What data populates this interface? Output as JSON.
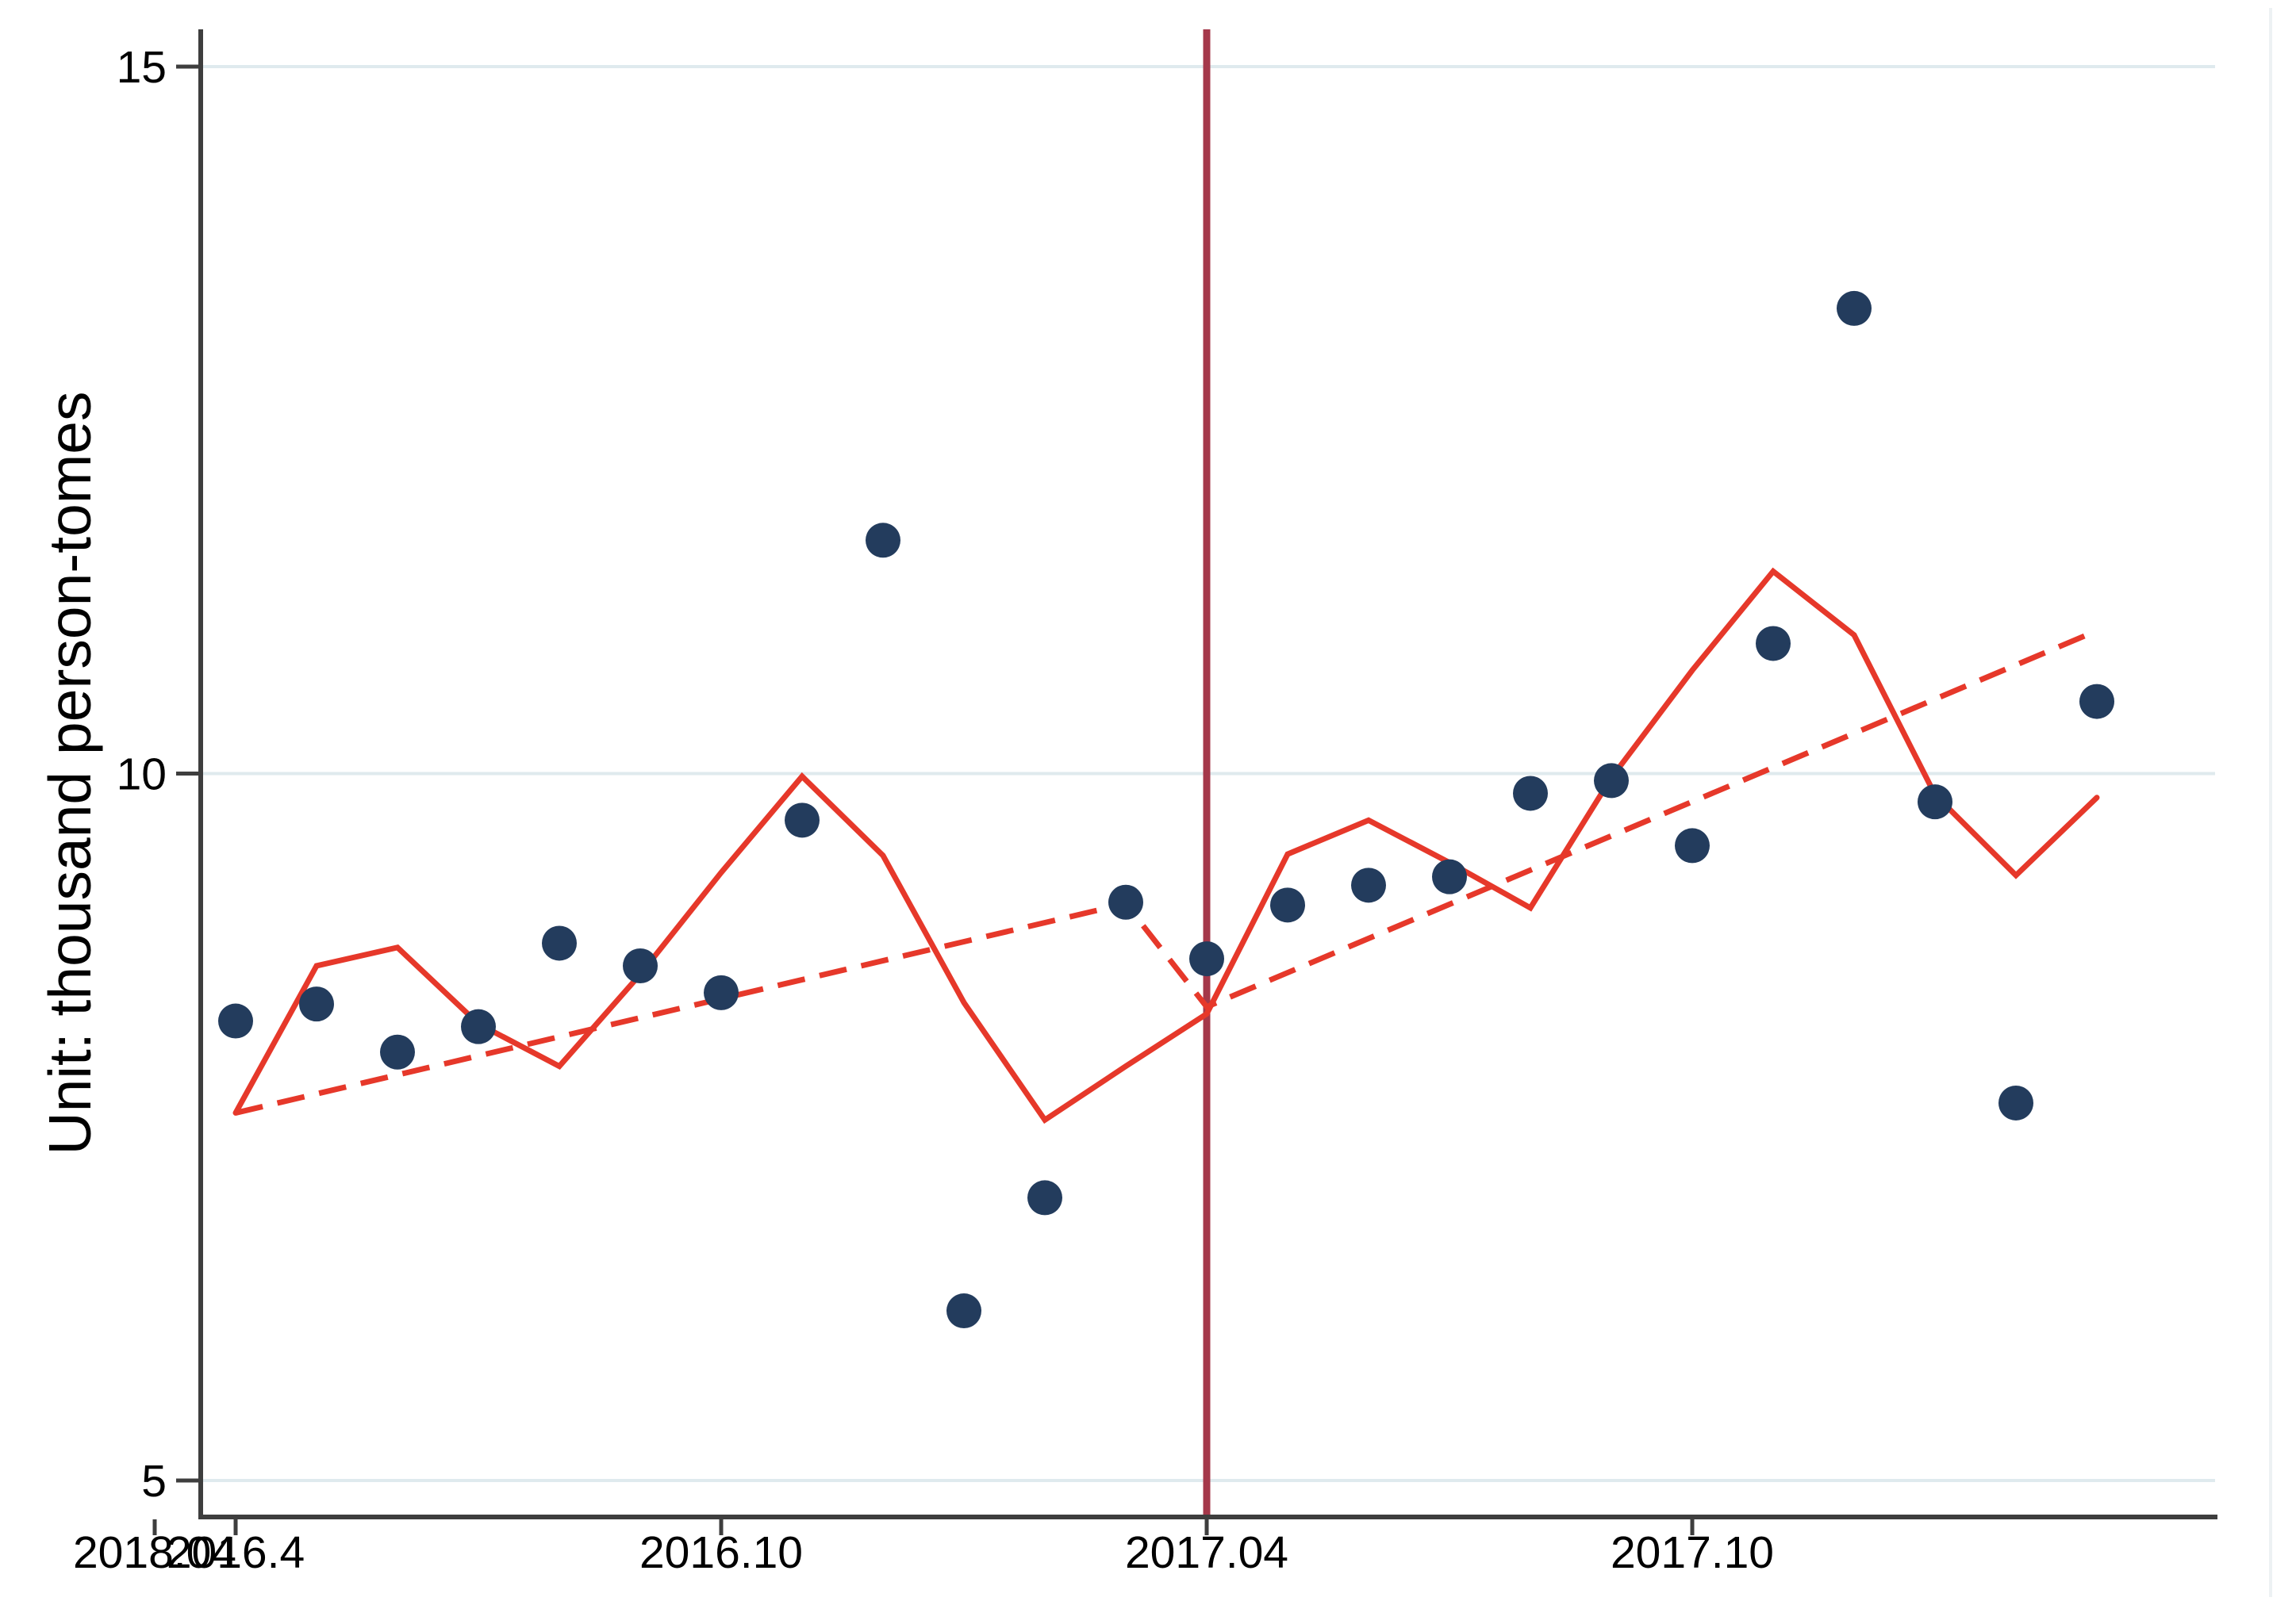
{
  "figure": {
    "title": "",
    "ylabel": "Unit: thousand person-tomes",
    "background": "#ffffff"
  },
  "axes": {
    "y_tick_labels": [
      "15",
      "10",
      "5"
    ],
    "y_tick_values": [
      15,
      10,
      5
    ],
    "x_tick_labels": [
      "2016.4",
      "2016.10",
      "2017.04",
      "2017.10",
      "2018.04"
    ],
    "x_tick_months": [
      "2016-04",
      "2016-10",
      "2017-04",
      "2017-10",
      "2018-04"
    ]
  },
  "colors": {
    "scatter_navy": "#233c5d",
    "line_red": "#e6382a",
    "cutoff_maroon": "#a5384a",
    "gridline": "#dfeaee",
    "axis": "#3e3e3e",
    "text": "#000000",
    "faint_right_border": "#edf1f3"
  },
  "chart_data": {
    "type": "scatter",
    "title": "",
    "xlabel": "",
    "ylabel": "Unit: thousand person-tomes",
    "grid": "horizontal gridlines at y = 5, 10, 15",
    "legend_position": "none",
    "xlim": [
      "2016-03-20",
      "2018-04-15"
    ],
    "ylim": [
      4.7,
      15.3
    ],
    "x_months": [
      "2016-04",
      "2016-05",
      "2016-06",
      "2016-07",
      "2016-08",
      "2016-09",
      "2016-10",
      "2016-11",
      "2016-12",
      "2017-01",
      "2017-02",
      "2017-03",
      "2017-04",
      "2017-05",
      "2017-06",
      "2017-07",
      "2017-08",
      "2017-09",
      "2017-10",
      "2017-11",
      "2017-12",
      "2018-01",
      "2018-02",
      "2018-03"
    ],
    "series": [
      {
        "name": "observed-monthly-values",
        "type": "scatter",
        "color": "#233c5d",
        "marker": "filled-circle",
        "values": [
          8.25,
          8.37,
          8.03,
          8.21,
          8.8,
          8.64,
          8.45,
          9.67,
          11.65,
          6.2,
          7.0,
          9.09,
          8.69,
          9.07,
          9.21,
          9.27,
          9.86,
          9.95,
          9.49,
          10.92,
          13.29,
          9.8,
          7.67,
          10.51
        ]
      },
      {
        "name": "fitted-line-solid",
        "type": "line",
        "color": "#e6382a",
        "stroke_width": 7,
        "values": [
          7.6,
          8.64,
          8.77,
          8.23,
          7.93,
          8.58,
          9.3,
          9.98,
          9.42,
          8.38,
          7.55,
          7.93,
          8.3,
          9.43,
          9.67,
          9.37,
          9.05,
          9.97,
          10.73,
          11.43,
          10.98,
          9.85,
          9.28,
          9.83
        ]
      },
      {
        "name": "linear-trend-dashed",
        "type": "line-dashed",
        "color": "#e6382a",
        "stroke_width": 7,
        "dash": [
          35,
          19
        ],
        "vertices_x": [
          "2016-04",
          "2017-03",
          "2017-04",
          "2018-03"
        ],
        "vertices_y": [
          7.6,
          9.08,
          8.35,
          11.01
        ],
        "note": "pre-cutoff trend 2016-04 to 2017-03, step down, post-cutoff trend 2017-04 to 2018-03"
      }
    ],
    "cutoff_line": {
      "name": "vertical-cutoff",
      "x": "2017-04",
      "color": "#a5384a",
      "stroke_width": 9,
      "span": "full plot height"
    }
  }
}
